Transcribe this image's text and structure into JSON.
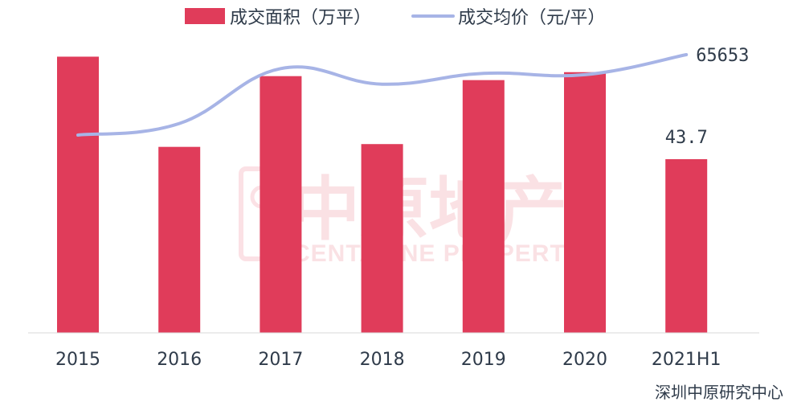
{
  "chart_data": {
    "type": "bar",
    "legend_position": "top",
    "categories": [
      "2015",
      "2016",
      "2017",
      "2018",
      "2019",
      "2020",
      "2021H1"
    ],
    "series": [
      {
        "name": "成交面积（万平）",
        "kind": "bar",
        "color": "#e03c5a",
        "values": [
          69.5,
          46.8,
          64.6,
          47.5,
          63.6,
          65.6,
          43.7
        ],
        "labels": [
          "",
          "",
          "",
          "",
          "",
          "",
          "43.7"
        ]
      },
      {
        "name": "成交均价（元/平）",
        "kind": "line",
        "color": "#a7b4e6",
        "values": [
          53800,
          55500,
          63600,
          61300,
          62900,
          62700,
          65653
        ],
        "labels": [
          "",
          "",
          "",
          "",
          "",
          "",
          "65653"
        ]
      }
    ],
    "grid": false
  },
  "watermark": {
    "chinese": "中原地产",
    "english": "CENTALINE PROPERTY"
  },
  "source": "深圳中原研究中心"
}
